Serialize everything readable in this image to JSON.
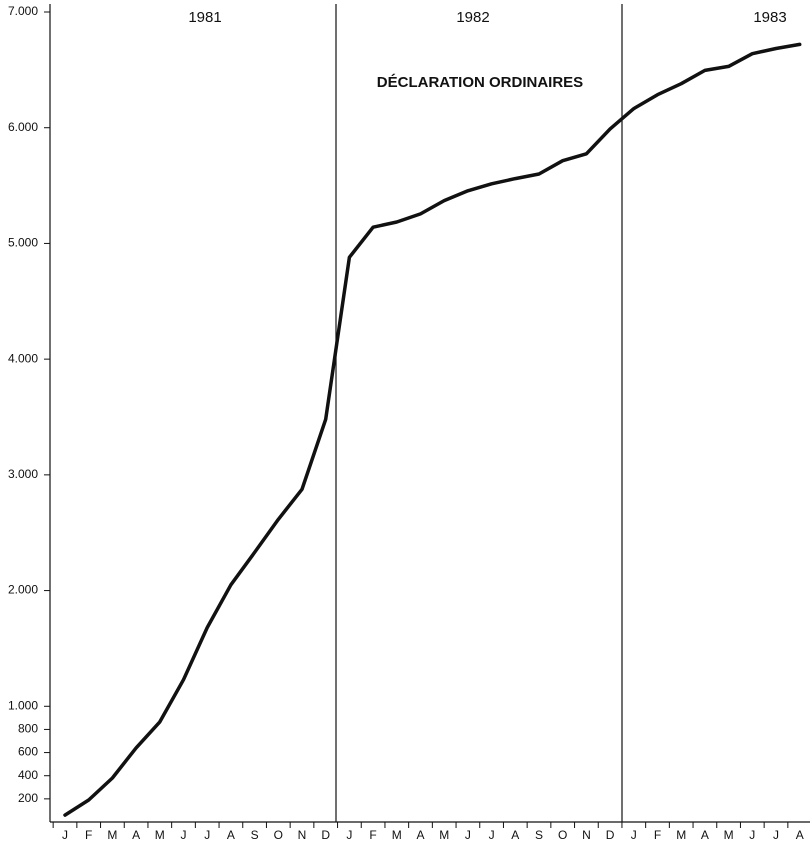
{
  "chart_data": {
    "type": "line",
    "annotation": "DÉCLARATION ORDINAIRES",
    "years": [
      "1981",
      "1982",
      "1983"
    ],
    "categories": [
      "J",
      "F",
      "M",
      "A",
      "M",
      "J",
      "J",
      "A",
      "S",
      "O",
      "N",
      "D",
      "J",
      "F",
      "M",
      "A",
      "M",
      "J",
      "J",
      "A",
      "S",
      "O",
      "N",
      "D",
      "J",
      "F",
      "M",
      "A",
      "M",
      "J",
      "J",
      "A"
    ],
    "series": [
      {
        "name": "Déclarations ordinaires",
        "color": "#111111",
        "values": [
          60,
          190,
          380,
          640,
          865,
          1230,
          1680,
          2050,
          2330,
          2615,
          2875,
          3480,
          4880,
          5140,
          5185,
          5255,
          5370,
          5455,
          5515,
          5560,
          5600,
          5715,
          5775,
          5990,
          6165,
          6285,
          6380,
          6495,
          6530,
          6640,
          6685,
          6720
        ]
      }
    ],
    "ylim": [
      0,
      7000
    ],
    "yticks": [
      200,
      400,
      600,
      800,
      {
        "value": 1000,
        "label": "1.000"
      },
      {
        "value": 2000,
        "label": "2.000"
      },
      {
        "value": 3000,
        "label": "3.000"
      },
      {
        "value": 4000,
        "label": "4.000"
      },
      {
        "value": 5000,
        "label": "5.000"
      },
      {
        "value": 6000,
        "label": "6.000"
      },
      {
        "value": 7000,
        "label": "7.000"
      }
    ]
  }
}
